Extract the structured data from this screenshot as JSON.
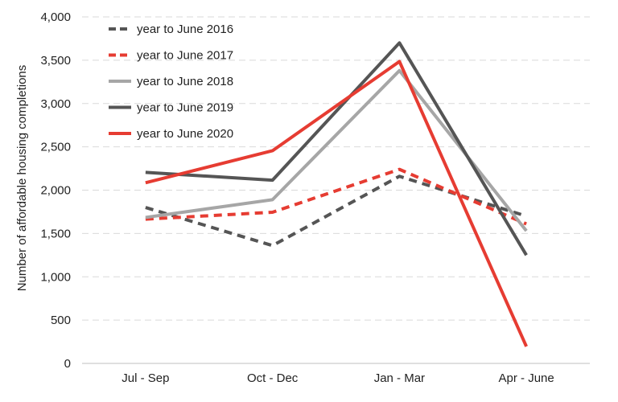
{
  "chart_data": {
    "type": "line",
    "title": "",
    "xlabel": "",
    "ylabel": "Number of affordable housing completions",
    "categories": [
      "Jul - Sep",
      "Oct - Dec",
      "Jan - Mar",
      "Apr - June"
    ],
    "ylim": [
      0,
      4000
    ],
    "yticks": [
      0,
      500,
      1000,
      1500,
      2000,
      2500,
      3000,
      3500,
      4000
    ],
    "ytick_labels": [
      "0",
      "500",
      "1,000",
      "1,500",
      "2,000",
      "2,500",
      "3,000",
      "3,500",
      "4,000"
    ],
    "grid": true,
    "legend_position": "top-left",
    "series": [
      {
        "name": "year to June 2016",
        "values": [
          1800,
          1360,
          2160,
          1700
        ],
        "color": "#555555",
        "dashed": true
      },
      {
        "name": "year to June 2017",
        "values": [
          1665,
          1745,
          2240,
          1610
        ],
        "color": "#e63c32",
        "dashed": true
      },
      {
        "name": "year to June 2018",
        "values": [
          1685,
          1890,
          3380,
          1530
        ],
        "color": "#a6a6a6",
        "dashed": false
      },
      {
        "name": "year to June 2019",
        "values": [
          2205,
          2115,
          3700,
          1250
        ],
        "color": "#555555",
        "dashed": false
      },
      {
        "name": "year to June 2020",
        "values": [
          2085,
          2455,
          3485,
          195
        ],
        "color": "#e63c32",
        "dashed": false
      }
    ]
  }
}
